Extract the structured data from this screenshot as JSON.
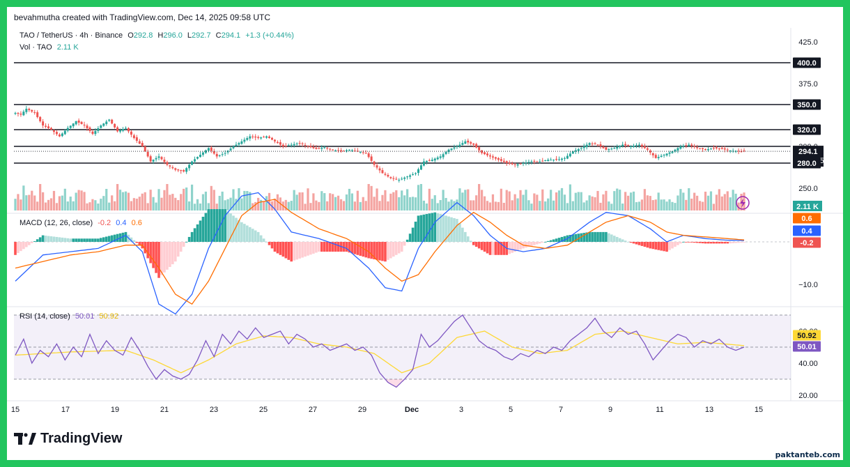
{
  "header": {
    "credit": "bevahmutha created with TradingView.com, Dec 14, 2025 09:58 UTC",
    "symbol": "TAO / TetherUS · 4h · Binance",
    "o_label": "O",
    "o_value": "292.8",
    "h_label": "H",
    "h_value": "296.0",
    "l_label": "L",
    "l_value": "292.7",
    "c_label": "C",
    "c_value": "294.1",
    "change": "+1.3 (+0.44%)",
    "vol_label": "Vol · TAO",
    "vol_value": "2.11 K"
  },
  "macd_header": {
    "label": "MACD (12, 26, close)",
    "hist": "-0.2",
    "macd": "0.4",
    "signal": "0.6"
  },
  "rsi_header": {
    "label": "RSI (14, close)",
    "rsi": "50.01",
    "ma": "50.92"
  },
  "price_axis": {
    "ticks": [
      "425.0",
      "375.0",
      "300.0",
      "280.0",
      "250.0"
    ],
    "level_labels": [
      "400.0",
      "350.0",
      "320.0",
      "300.0"
    ],
    "last_price": "294.1",
    "countdown": "02:01:59",
    "level_280": "280.0",
    "volume_badge": "2.11 K"
  },
  "macd_axis": {
    "ticks": [
      "−10.0"
    ],
    "badges": [
      "0.6",
      "0.4",
      "-0.2"
    ]
  },
  "rsi_axis": {
    "ticks": [
      "60.00",
      "40.00",
      "20.00"
    ],
    "badges": [
      "50.92",
      "50.01"
    ]
  },
  "time_axis": [
    "15",
    "17",
    "19",
    "21",
    "23",
    "25",
    "27",
    "29",
    "Dec",
    "3",
    "5",
    "7",
    "9",
    "11",
    "13",
    "15"
  ],
  "brand": {
    "name": "TradingView"
  },
  "watermark": "paktanteb.com",
  "colors": {
    "up": "#26a69a",
    "down": "#ef5350",
    "macd_line": "#2962ff",
    "signal_line": "#ff6d00",
    "rsi_line": "#7e57c2",
    "rsi_ma": "#fdd835",
    "frame": "#22c55e"
  },
  "chart_data": [
    {
      "type": "candlestick",
      "title": "TAO / TetherUS · 4h · Binance",
      "x": [
        "15",
        "17",
        "19",
        "21",
        "23",
        "25",
        "27",
        "29",
        "Dec",
        "3",
        "5",
        "7",
        "9",
        "11",
        "13",
        "15"
      ],
      "ylim": [
        240,
        440
      ],
      "horizontal_levels": [
        400,
        350,
        320,
        300,
        280
      ],
      "anchors_close": [
        [
          0,
          340
        ],
        [
          2,
          338
        ],
        [
          4,
          345
        ],
        [
          7,
          340
        ],
        [
          10,
          325
        ],
        [
          13,
          320
        ],
        [
          16,
          312
        ],
        [
          19,
          322
        ],
        [
          22,
          330
        ],
        [
          25,
          325
        ],
        [
          28,
          315
        ],
        [
          31,
          325
        ],
        [
          34,
          332
        ],
        [
          37,
          318
        ],
        [
          40,
          322
        ],
        [
          43,
          310
        ],
        [
          46,
          300
        ],
        [
          49,
          282
        ],
        [
          52,
          288
        ],
        [
          55,
          278
        ],
        [
          58,
          272
        ],
        [
          61,
          270
        ],
        [
          64,
          282
        ],
        [
          67,
          290
        ],
        [
          70,
          298
        ],
        [
          73,
          288
        ],
        [
          76,
          292
        ],
        [
          79,
          300
        ],
        [
          82,
          306
        ],
        [
          85,
          312
        ],
        [
          88,
          310
        ],
        [
          91,
          312
        ],
        [
          94,
          306
        ],
        [
          97,
          300
        ],
        [
          100,
          302
        ],
        [
          103,
          304
        ],
        [
          106,
          300
        ],
        [
          109,
          297
        ],
        [
          112,
          299
        ],
        [
          115,
          296
        ],
        [
          118,
          294
        ],
        [
          121,
          296
        ],
        [
          124,
          294
        ],
        [
          127,
          292
        ],
        [
          130,
          278
        ],
        [
          133,
          268
        ],
        [
          136,
          262
        ],
        [
          139,
          260
        ],
        [
          142,
          264
        ],
        [
          145,
          268
        ],
        [
          148,
          282
        ],
        [
          151,
          284
        ],
        [
          154,
          288
        ],
        [
          157,
          296
        ],
        [
          160,
          300
        ],
        [
          163,
          306
        ],
        [
          166,
          302
        ],
        [
          169,
          292
        ],
        [
          172,
          288
        ],
        [
          175,
          284
        ],
        [
          178,
          280
        ],
        [
          181,
          278
        ],
        [
          184,
          280
        ],
        [
          187,
          282
        ],
        [
          190,
          282
        ],
        [
          193,
          284
        ],
        [
          196,
          284
        ],
        [
          199,
          286
        ],
        [
          202,
          294
        ],
        [
          205,
          298
        ],
        [
          208,
          304
        ],
        [
          211,
          302
        ],
        [
          214,
          296
        ],
        [
          217,
          298
        ],
        [
          220,
          302
        ],
        [
          223,
          300
        ],
        [
          226,
          302
        ],
        [
          229,
          296
        ],
        [
          232,
          286
        ],
        [
          235,
          290
        ],
        [
          238,
          294
        ],
        [
          241,
          300
        ],
        [
          244,
          302
        ],
        [
          247,
          298
        ],
        [
          250,
          296
        ],
        [
          253,
          298
        ],
        [
          256,
          297
        ],
        [
          259,
          295
        ],
        [
          262,
          294
        ],
        [
          264,
          294.1
        ]
      ],
      "volume_badge": "2.11 K"
    },
    {
      "type": "line",
      "title": "MACD (12, 26, close)",
      "series": [
        {
          "name": "MACD",
          "anchors": [
            [
              0,
              -12
            ],
            [
              10,
              -4
            ],
            [
              20,
              -3
            ],
            [
              30,
              -2
            ],
            [
              40,
              2
            ],
            [
              46,
              -3
            ],
            [
              52,
              -19
            ],
            [
              58,
              -22
            ],
            [
              64,
              -16
            ],
            [
              70,
              -2
            ],
            [
              76,
              8
            ],
            [
              82,
              14
            ],
            [
              88,
              15
            ],
            [
              94,
              10
            ],
            [
              100,
              3
            ],
            [
              110,
              1
            ],
            [
              120,
              -2
            ],
            [
              128,
              -8
            ],
            [
              134,
              -14
            ],
            [
              140,
              -15
            ],
            [
              146,
              -2
            ],
            [
              152,
              6
            ],
            [
              160,
              12
            ],
            [
              166,
              8
            ],
            [
              172,
              2
            ],
            [
              178,
              -2
            ],
            [
              184,
              -3
            ],
            [
              192,
              -2
            ],
            [
              200,
              1
            ],
            [
              208,
              6
            ],
            [
              214,
              9
            ],
            [
              222,
              8
            ],
            [
              230,
              4
            ],
            [
              236,
              0
            ],
            [
              242,
              2
            ],
            [
              250,
              1
            ],
            [
              258,
              0.5
            ],
            [
              264,
              0.4
            ]
          ]
        },
        {
          "name": "Signal",
          "anchors": [
            [
              0,
              -8
            ],
            [
              10,
              -6
            ],
            [
              20,
              -4
            ],
            [
              30,
              -3
            ],
            [
              40,
              -1
            ],
            [
              46,
              -1
            ],
            [
              52,
              -8
            ],
            [
              58,
              -16
            ],
            [
              64,
              -19
            ],
            [
              70,
              -12
            ],
            [
              76,
              -2
            ],
            [
              82,
              8
            ],
            [
              88,
              12
            ],
            [
              94,
              13
            ],
            [
              100,
              9
            ],
            [
              110,
              4
            ],
            [
              120,
              1
            ],
            [
              128,
              -3
            ],
            [
              134,
              -8
            ],
            [
              140,
              -12
            ],
            [
              146,
              -10
            ],
            [
              152,
              -3
            ],
            [
              160,
              5
            ],
            [
              166,
              9
            ],
            [
              172,
              6
            ],
            [
              178,
              2
            ],
            [
              184,
              -1
            ],
            [
              192,
              -2
            ],
            [
              200,
              -1
            ],
            [
              208,
              3
            ],
            [
              214,
              6
            ],
            [
              222,
              8
            ],
            [
              230,
              6
            ],
            [
              236,
              3
            ],
            [
              242,
              2
            ],
            [
              250,
              1.5
            ],
            [
              258,
              1
            ],
            [
              264,
              0.6
            ]
          ]
        },
        {
          "name": "Histogram",
          "anchors": []
        }
      ],
      "ticks": [
        "−10.0"
      ],
      "values_shown": {
        "histogram": -0.2,
        "macd": 0.4,
        "signal": 0.6
      }
    },
    {
      "type": "line",
      "title": "RSI (14, close)",
      "ylim": [
        15,
        75
      ],
      "band": [
        30,
        70
      ],
      "series": [
        {
          "name": "RSI",
          "anchors": [
            [
              0,
              45
            ],
            [
              3,
              55
            ],
            [
              6,
              40
            ],
            [
              9,
              48
            ],
            [
              12,
              44
            ],
            [
              15,
              52
            ],
            [
              18,
              42
            ],
            [
              21,
              50
            ],
            [
              24,
              44
            ],
            [
              27,
              58
            ],
            [
              30,
              46
            ],
            [
              33,
              54
            ],
            [
              36,
              48
            ],
            [
              39,
              45
            ],
            [
              42,
              56
            ],
            [
              45,
              48
            ],
            [
              48,
              38
            ],
            [
              51,
              30
            ],
            [
              54,
              36
            ],
            [
              57,
              32
            ],
            [
              60,
              30
            ],
            [
              63,
              33
            ],
            [
              66,
              42
            ],
            [
              69,
              54
            ],
            [
              72,
              44
            ],
            [
              75,
              58
            ],
            [
              78,
              52
            ],
            [
              81,
              60
            ],
            [
              84,
              55
            ],
            [
              87,
              62
            ],
            [
              90,
              56
            ],
            [
              93,
              58
            ],
            [
              96,
              60
            ],
            [
              99,
              52
            ],
            [
              102,
              58
            ],
            [
              105,
              55
            ],
            [
              108,
              50
            ],
            [
              111,
              52
            ],
            [
              114,
              48
            ],
            [
              117,
              50
            ],
            [
              120,
              52
            ],
            [
              123,
              48
            ],
            [
              126,
              50
            ],
            [
              129,
              45
            ],
            [
              132,
              34
            ],
            [
              135,
              28
            ],
            [
              138,
              25
            ],
            [
              141,
              30
            ],
            [
              144,
              36
            ],
            [
              147,
              58
            ],
            [
              150,
              50
            ],
            [
              153,
              54
            ],
            [
              156,
              60
            ],
            [
              159,
              66
            ],
            [
              162,
              70
            ],
            [
              165,
              62
            ],
            [
              168,
              54
            ],
            [
              171,
              50
            ],
            [
              174,
              48
            ],
            [
              177,
              44
            ],
            [
              180,
              42
            ],
            [
              183,
              46
            ],
            [
              186,
              44
            ],
            [
              189,
              48
            ],
            [
              192,
              46
            ],
            [
              195,
              50
            ],
            [
              198,
              48
            ],
            [
              201,
              54
            ],
            [
              204,
              58
            ],
            [
              207,
              62
            ],
            [
              210,
              68
            ],
            [
              213,
              60
            ],
            [
              216,
              56
            ],
            [
              219,
              62
            ],
            [
              222,
              58
            ],
            [
              225,
              60
            ],
            [
              228,
              52
            ],
            [
              231,
              42
            ],
            [
              234,
              48
            ],
            [
              237,
              54
            ],
            [
              240,
              58
            ],
            [
              243,
              56
            ],
            [
              246,
              50
            ],
            [
              249,
              54
            ],
            [
              252,
              52
            ],
            [
              255,
              55
            ],
            [
              258,
              50
            ],
            [
              261,
              48
            ],
            [
              264,
              50.01
            ]
          ]
        },
        {
          "name": "RSI MA",
          "anchors": [
            [
              0,
              45
            ],
            [
              20,
              47
            ],
            [
              40,
              48
            ],
            [
              50,
              42
            ],
            [
              60,
              34
            ],
            [
              70,
              42
            ],
            [
              80,
              52
            ],
            [
              90,
              57
            ],
            [
              100,
              56
            ],
            [
              110,
              52
            ],
            [
              120,
              50
            ],
            [
              130,
              46
            ],
            [
              140,
              34
            ],
            [
              150,
              40
            ],
            [
              160,
              56
            ],
            [
              170,
              60
            ],
            [
              180,
              50
            ],
            [
              190,
              46
            ],
            [
              200,
              48
            ],
            [
              210,
              58
            ],
            [
              220,
              60
            ],
            [
              230,
              56
            ],
            [
              240,
              52
            ],
            [
              250,
              53
            ],
            [
              264,
              50.92
            ]
          ]
        }
      ],
      "ticks": [
        "60.00",
        "40.00",
        "20.00"
      ],
      "values_shown": {
        "rsi": 50.01,
        "ma": 50.92
      }
    }
  ]
}
